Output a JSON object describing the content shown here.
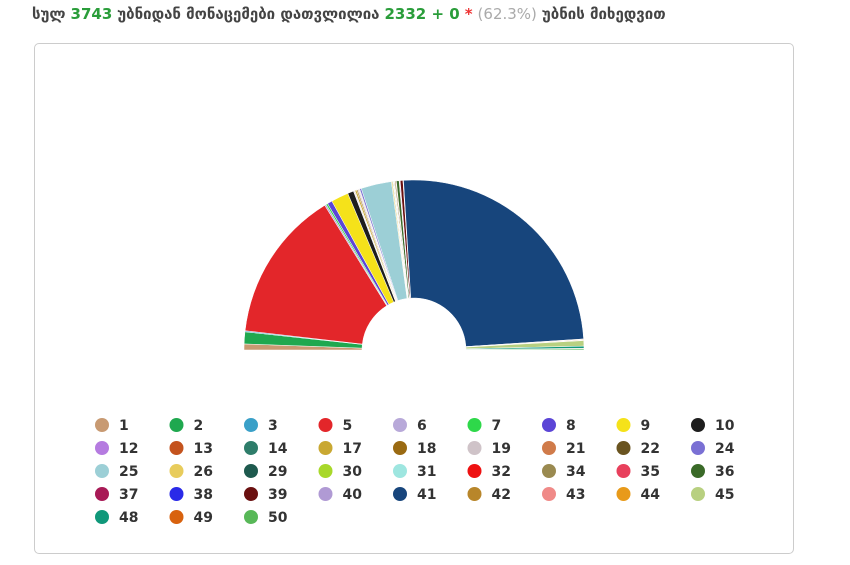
{
  "header": {
    "t1": "სულ",
    "total": "3743",
    "t2": "უბნიდან მონაცემები დათვლილია",
    "counted": "2332 + 0",
    "star": "*",
    "percent": "(62.3%)",
    "t3": "უბნის მიხედვით"
  },
  "chart_data": {
    "type": "pie",
    "categories": [
      "1",
      "2",
      "3",
      "5",
      "6",
      "7",
      "8",
      "9",
      "10",
      "12",
      "13",
      "14",
      "17",
      "18",
      "19",
      "21",
      "22",
      "24",
      "25",
      "26",
      "29",
      "30",
      "31",
      "32",
      "34",
      "35",
      "36",
      "37",
      "38",
      "39",
      "40",
      "41",
      "42",
      "43",
      "44",
      "45",
      "48",
      "49",
      "50"
    ],
    "values": [
      1.1,
      2.2,
      0.2,
      27.8,
      0.3,
      0.3,
      0.9,
      3.2,
      1.1,
      0.1,
      0.1,
      0.1,
      0.3,
      0.2,
      0.2,
      0.1,
      0.1,
      0.3,
      5.6,
      0.2,
      0.1,
      0.1,
      0.1,
      0.1,
      0.2,
      0.1,
      0.5,
      0.1,
      0.1,
      0.5,
      0.1,
      48.2,
      0.1,
      0.1,
      0.1,
      1.0,
      0.4,
      0.1,
      0.2
    ],
    "colors": [
      "#c89a72",
      "#1fa84f",
      "#3aa0c8",
      "#e3262a",
      "#b8a9d9",
      "#2ed84a",
      "#5b45d6",
      "#f5e21a",
      "#1e1e1e",
      "#b57be0",
      "#c4531e",
      "#2e7d6a",
      "#c9a832",
      "#9a6a12",
      "#cfc3c8",
      "#d07b4a",
      "#6a5420",
      "#7a70d4",
      "#9ccfd6",
      "#e8cc5c",
      "#1e5a4e",
      "#a8d82a",
      "#9ee6e0",
      "#ee1111",
      "#9a8a50",
      "#e8405c",
      "#3a6a28",
      "#a81a56",
      "#2a2ae8",
      "#6a1010",
      "#b09ad4",
      "#17457c",
      "#b8862a",
      "#f08a88",
      "#e89a1a",
      "#b8d080",
      "#10987a",
      "#d8620e",
      "#58b858"
    ]
  }
}
